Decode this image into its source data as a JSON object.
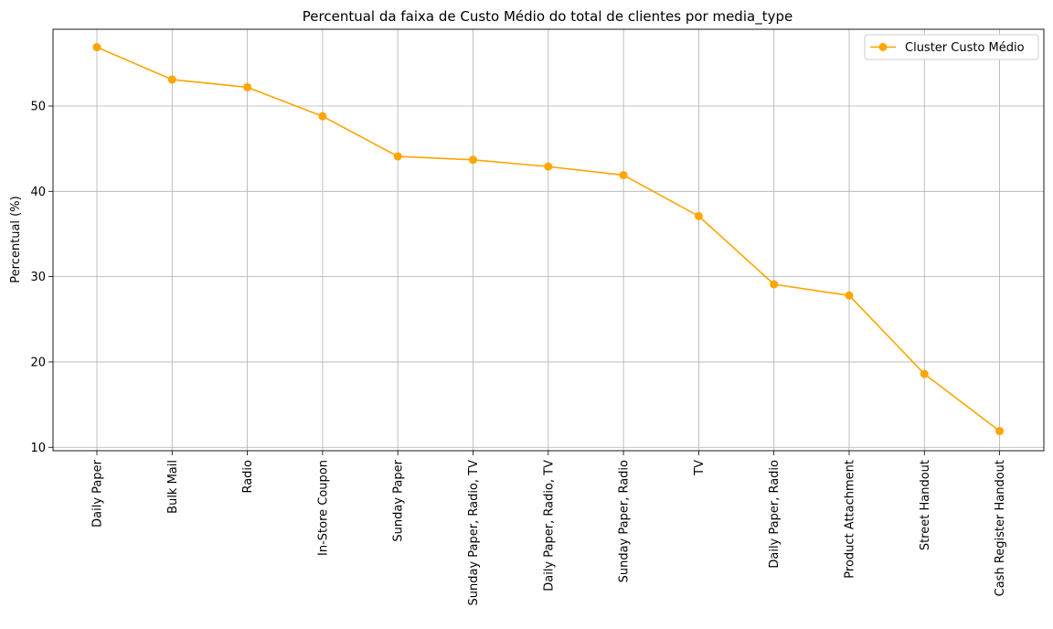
{
  "chart_data": {
    "type": "line",
    "title": "Percentual da faixa de Custo Médio do total de clientes por media_type",
    "xlabel": "",
    "ylabel": "Percentual (%)",
    "categories": [
      "Daily Paper",
      "Bulk Mail",
      "Radio",
      "In-Store Coupon",
      "Sunday Paper",
      "Sunday Paper, Radio, TV",
      "Daily Paper, Radio, TV",
      "Sunday Paper, Radio",
      "TV",
      "Daily Paper, Radio",
      "Product Attachment",
      "Street Handout",
      "Cash Register Handout"
    ],
    "series": [
      {
        "name": "Cluster Custo Médio",
        "color": "#FFA500",
        "marker": "circle",
        "values": [
          56.9,
          53.1,
          52.2,
          48.8,
          44.1,
          43.7,
          42.9,
          41.9,
          37.1,
          29.1,
          27.8,
          18.6,
          11.9
        ]
      }
    ],
    "yticks": [
      10,
      20,
      30,
      40,
      50
    ],
    "ylim": [
      9.6,
      59.0
    ],
    "grid": true,
    "legend_position": "top-right"
  }
}
